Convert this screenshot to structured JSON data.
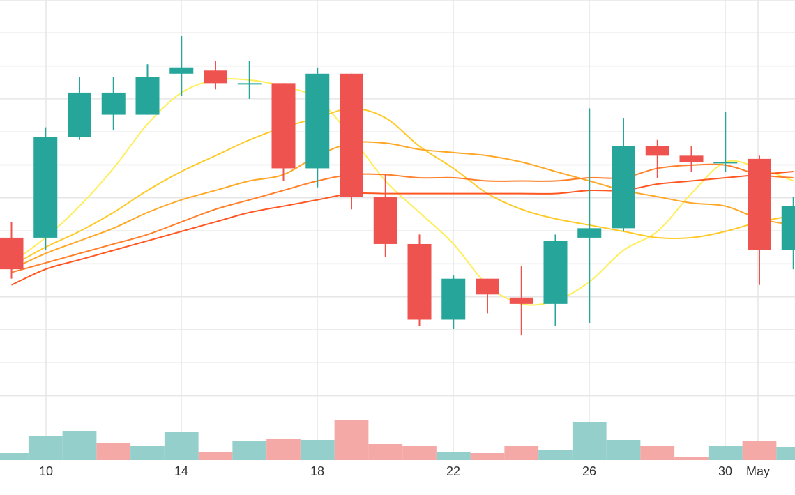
{
  "chart_data": {
    "type": "candlestick",
    "title": "",
    "xlabel": "",
    "ylabel": "",
    "x_ticks": [
      "10",
      "14",
      "18",
      "22",
      "26",
      "30",
      "May"
    ],
    "grid": true,
    "legend": "none",
    "colors": {
      "up": "#26a69a",
      "down": "#ef5350",
      "volume_up": "#95cfcb",
      "volume_down": "#f5a9a7",
      "grid": "#e6e6e6",
      "ma": [
        "#ffee58",
        "#ffca28",
        "#ffa726",
        "#ff7f2a",
        "#ff5722"
      ]
    },
    "price_range": [
      -1,
      10.5
    ],
    "volume_range": [
      0,
      100
    ],
    "candles": [
      {
        "x": 9,
        "open": 4.0,
        "close": 3.0,
        "high": 4.5,
        "low": 2.7
      },
      {
        "x": 10,
        "open": 4.0,
        "close": 7.2,
        "high": 7.5,
        "low": 3.6
      },
      {
        "x": 11,
        "open": 7.2,
        "close": 8.6,
        "high": 9.1,
        "low": 7.1
      },
      {
        "x": 12,
        "open": 7.9,
        "close": 8.6,
        "high": 9.1,
        "low": 7.4
      },
      {
        "x": 13,
        "open": 7.9,
        "close": 9.1,
        "high": 9.5,
        "low": 7.9
      },
      {
        "x": 14,
        "open": 9.2,
        "close": 9.4,
        "high": 10.4,
        "low": 8.5
      },
      {
        "x": 15,
        "open": 9.3,
        "close": 8.9,
        "high": 9.6,
        "low": 8.7
      },
      {
        "x": 16,
        "open": 8.9,
        "close": 8.9,
        "high": 9.6,
        "low": 8.4
      },
      {
        "x": 17,
        "open": 8.9,
        "close": 6.2,
        "high": 8.9,
        "low": 5.8
      },
      {
        "x": 18,
        "open": 6.2,
        "close": 9.2,
        "high": 9.4,
        "low": 5.6
      },
      {
        "x": 19,
        "open": 9.2,
        "close": 5.3,
        "high": 9.2,
        "low": 4.9
      },
      {
        "x": 20,
        "open": 5.3,
        "close": 3.8,
        "high": 6.0,
        "low": 3.4
      },
      {
        "x": 21,
        "open": 3.8,
        "close": 1.4,
        "high": 4.1,
        "low": 1.2
      },
      {
        "x": 22,
        "open": 1.4,
        "close": 2.7,
        "high": 2.8,
        "low": 1.1
      },
      {
        "x": 23,
        "open": 2.7,
        "close": 2.2,
        "high": 2.7,
        "low": 1.6
      },
      {
        "x": 24,
        "open": 2.1,
        "close": 1.9,
        "high": 3.1,
        "low": 0.9
      },
      {
        "x": 25,
        "open": 1.9,
        "close": 3.9,
        "high": 4.1,
        "low": 1.2
      },
      {
        "x": 26,
        "open": 4.0,
        "close": 4.3,
        "high": 8.1,
        "low": 1.3
      },
      {
        "x": 27,
        "open": 4.3,
        "close": 6.9,
        "high": 7.8,
        "low": 4.2
      },
      {
        "x": 28,
        "open": 6.9,
        "close": 6.6,
        "high": 7.1,
        "low": 5.9
      },
      {
        "x": 29,
        "open": 6.6,
        "close": 6.4,
        "high": 6.9,
        "low": 6.1
      },
      {
        "x": 30,
        "open": 6.4,
        "close": 6.4,
        "high": 8.0,
        "low": 6.1
      },
      {
        "x": 31,
        "open": 6.5,
        "close": 3.6,
        "high": 6.6,
        "low": 2.5
      },
      {
        "x": 32,
        "open": 3.6,
        "close": 5.0,
        "high": 5.3,
        "low": 3.0
      }
    ],
    "volume": [
      {
        "x": 9,
        "value": 10,
        "dir": "up"
      },
      {
        "x": 10,
        "value": 34,
        "dir": "up"
      },
      {
        "x": 11,
        "value": 42,
        "dir": "up"
      },
      {
        "x": 12,
        "value": 25,
        "dir": "down"
      },
      {
        "x": 13,
        "value": 21,
        "dir": "up"
      },
      {
        "x": 14,
        "value": 40,
        "dir": "up"
      },
      {
        "x": 15,
        "value": 12,
        "dir": "down"
      },
      {
        "x": 16,
        "value": 28,
        "dir": "up"
      },
      {
        "x": 17,
        "value": 31,
        "dir": "down"
      },
      {
        "x": 18,
        "value": 29,
        "dir": "up"
      },
      {
        "x": 19,
        "value": 58,
        "dir": "down"
      },
      {
        "x": 20,
        "value": 23,
        "dir": "down"
      },
      {
        "x": 21,
        "value": 21,
        "dir": "down"
      },
      {
        "x": 22,
        "value": 11,
        "dir": "up"
      },
      {
        "x": 23,
        "value": 10,
        "dir": "down"
      },
      {
        "x": 24,
        "value": 21,
        "dir": "down"
      },
      {
        "x": 25,
        "value": 15,
        "dir": "up"
      },
      {
        "x": 26,
        "value": 54,
        "dir": "up"
      },
      {
        "x": 27,
        "value": 29,
        "dir": "up"
      },
      {
        "x": 28,
        "value": 21,
        "dir": "down"
      },
      {
        "x": 29,
        "value": 5,
        "dir": "down"
      },
      {
        "x": 30,
        "value": 21,
        "dir": "up"
      },
      {
        "x": 31,
        "value": 28,
        "dir": "down"
      },
      {
        "x": 32,
        "value": 19,
        "dir": "up"
      }
    ],
    "moving_averages": [
      {
        "color": "#ffee58",
        "points": [
          [
            9,
            3.2
          ],
          [
            10,
            4.0
          ],
          [
            11,
            5.0
          ],
          [
            12,
            6.2
          ],
          [
            13,
            7.6
          ],
          [
            14,
            8.6
          ],
          [
            15,
            9.0
          ],
          [
            16,
            9.0
          ],
          [
            17,
            8.8
          ],
          [
            18,
            8.4
          ],
          [
            19,
            7.2
          ],
          [
            20,
            5.8
          ],
          [
            21,
            4.8
          ],
          [
            22,
            3.8
          ],
          [
            23,
            2.5
          ],
          [
            24,
            1.9
          ],
          [
            25,
            2.0
          ],
          [
            26,
            2.6
          ],
          [
            27,
            3.6
          ],
          [
            28,
            4.2
          ],
          [
            29,
            5.4
          ],
          [
            30,
            6.4
          ],
          [
            31,
            6.2
          ],
          [
            32,
            5.8
          ]
        ]
      },
      {
        "color": "#ffca28",
        "points": [
          [
            9,
            3.1
          ],
          [
            10,
            3.7
          ],
          [
            11,
            4.2
          ],
          [
            12,
            4.8
          ],
          [
            13,
            5.5
          ],
          [
            14,
            6.1
          ],
          [
            15,
            6.6
          ],
          [
            16,
            7.1
          ],
          [
            17,
            7.5
          ],
          [
            18,
            7.8
          ],
          [
            19,
            8.1
          ],
          [
            20,
            7.8
          ],
          [
            21,
            6.9
          ],
          [
            22,
            6.2
          ],
          [
            23,
            5.4
          ],
          [
            24,
            4.9
          ],
          [
            25,
            4.6
          ],
          [
            26,
            4.4
          ],
          [
            27,
            4.2
          ],
          [
            28,
            4.0
          ],
          [
            29,
            4.0
          ],
          [
            30,
            4.2
          ],
          [
            31,
            4.5
          ],
          [
            32,
            4.7
          ]
        ]
      },
      {
        "color": "#ffa726",
        "points": [
          [
            9,
            3.0
          ],
          [
            10,
            3.5
          ],
          [
            11,
            3.9
          ],
          [
            12,
            4.3
          ],
          [
            13,
            4.8
          ],
          [
            14,
            5.2
          ],
          [
            15,
            5.5
          ],
          [
            16,
            5.8
          ],
          [
            17,
            6.0
          ],
          [
            18,
            6.6
          ],
          [
            19,
            7.0
          ],
          [
            20,
            7.0
          ],
          [
            21,
            6.8
          ],
          [
            22,
            6.7
          ],
          [
            23,
            6.6
          ],
          [
            24,
            6.4
          ],
          [
            25,
            6.1
          ],
          [
            26,
            5.8
          ],
          [
            27,
            5.5
          ],
          [
            28,
            5.3
          ],
          [
            29,
            5.1
          ],
          [
            30,
            5.0
          ],
          [
            31,
            4.6
          ],
          [
            32,
            4.4
          ]
        ]
      },
      {
        "color": "#ff7f2a",
        "points": [
          [
            9,
            2.9
          ],
          [
            10,
            3.2
          ],
          [
            11,
            3.5
          ],
          [
            12,
            3.8
          ],
          [
            13,
            4.1
          ],
          [
            14,
            4.5
          ],
          [
            15,
            4.9
          ],
          [
            16,
            5.2
          ],
          [
            17,
            5.5
          ],
          [
            18,
            5.8
          ],
          [
            19,
            6.0
          ],
          [
            20,
            6.0
          ],
          [
            21,
            5.9
          ],
          [
            22,
            5.9
          ],
          [
            23,
            5.8
          ],
          [
            24,
            5.8
          ],
          [
            25,
            5.8
          ],
          [
            26,
            5.9
          ],
          [
            27,
            5.9
          ],
          [
            28,
            6.2
          ],
          [
            29,
            6.3
          ],
          [
            30,
            6.3
          ],
          [
            31,
            6.0
          ],
          [
            32,
            5.9
          ]
        ]
      },
      {
        "color": "#ff5722",
        "points": [
          [
            9,
            2.5
          ],
          [
            10,
            3.0
          ],
          [
            11,
            3.3
          ],
          [
            12,
            3.6
          ],
          [
            13,
            3.9
          ],
          [
            14,
            4.2
          ],
          [
            15,
            4.5
          ],
          [
            16,
            4.8
          ],
          [
            17,
            5.0
          ],
          [
            18,
            5.2
          ],
          [
            19,
            5.4
          ],
          [
            20,
            5.4
          ],
          [
            21,
            5.4
          ],
          [
            22,
            5.4
          ],
          [
            23,
            5.4
          ],
          [
            24,
            5.4
          ],
          [
            25,
            5.4
          ],
          [
            26,
            5.5
          ],
          [
            27,
            5.5
          ],
          [
            28,
            5.7
          ],
          [
            29,
            5.8
          ],
          [
            30,
            5.9
          ],
          [
            31,
            6.0
          ],
          [
            32,
            6.1
          ]
        ]
      }
    ]
  }
}
